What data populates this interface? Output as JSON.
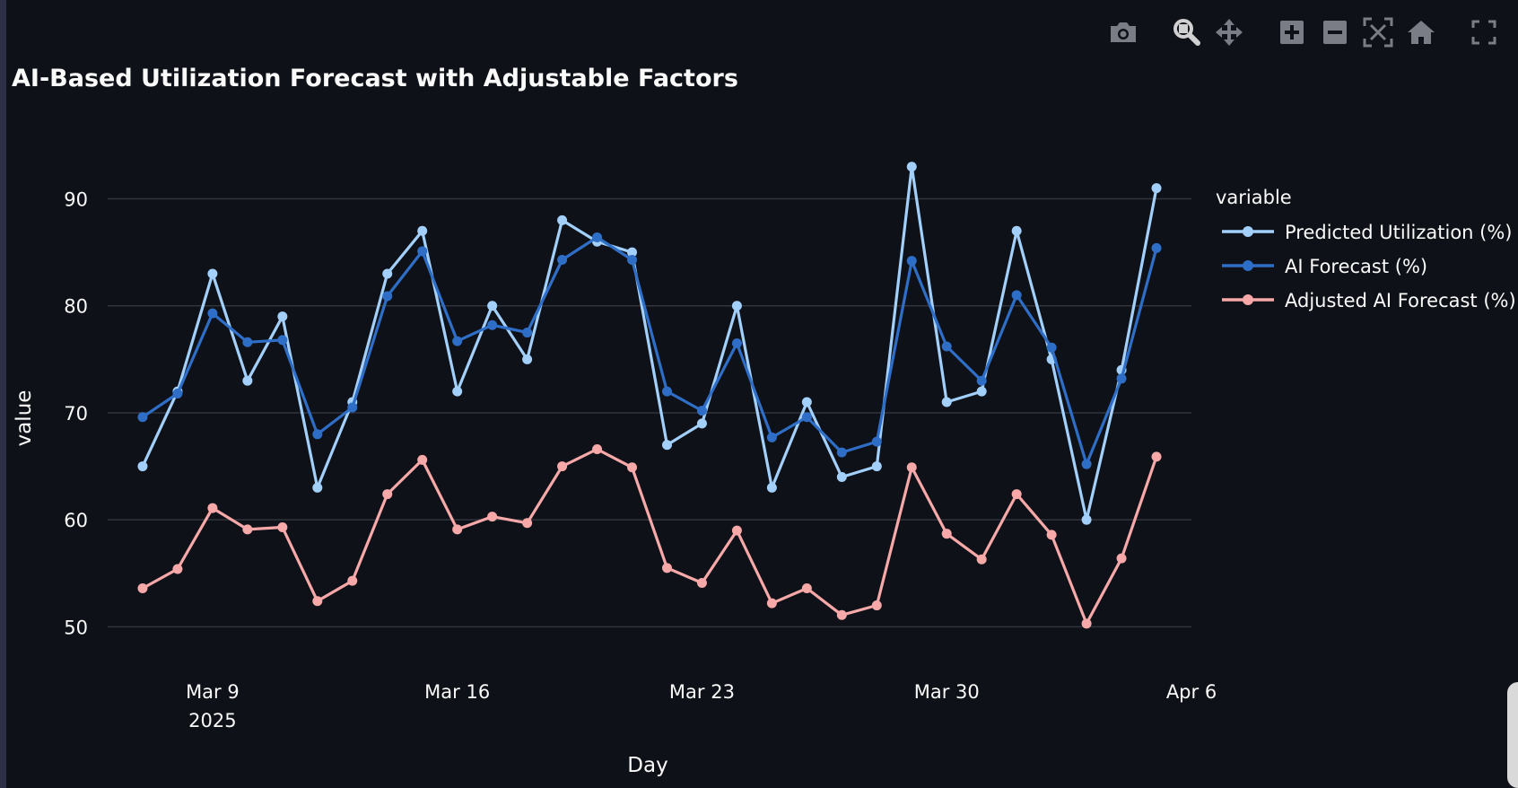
{
  "toolbar": {
    "buttons": [
      {
        "name": "camera-icon",
        "label": "Download plot as a png"
      },
      {
        "name": "zoom-icon",
        "label": "Zoom"
      },
      {
        "name": "pan-icon",
        "label": "Pan"
      },
      {
        "name": "zoom-in-icon",
        "label": "Zoom in"
      },
      {
        "name": "zoom-out-icon",
        "label": "Zoom out"
      },
      {
        "name": "autoscale-icon",
        "label": "Autoscale"
      },
      {
        "name": "home-icon",
        "label": "Reset axes"
      },
      {
        "name": "fullscreen-icon",
        "label": "View fullscreen"
      }
    ],
    "icon_color": "#7a7d85",
    "active_color": "#d0d0d0"
  },
  "chart_data": {
    "type": "line",
    "title": "AI-Based Utilization Forecast with Adjustable Factors",
    "xlabel": "Day",
    "ylabel": "value",
    "legend_title": "variable",
    "legend_position": "right",
    "grid": true,
    "x_range": [
      "2025-03-06",
      "2025-04-06"
    ],
    "ylim": [
      45,
      96
    ],
    "yticks": [
      50,
      60,
      70,
      80,
      90
    ],
    "xticks": [
      {
        "date": "2025-03-09",
        "label": "Mar 9",
        "sublabel": "2025"
      },
      {
        "date": "2025-03-16",
        "label": "Mar 16",
        "sublabel": ""
      },
      {
        "date": "2025-03-23",
        "label": "Mar 23",
        "sublabel": ""
      },
      {
        "date": "2025-03-30",
        "label": "Mar 30",
        "sublabel": ""
      },
      {
        "date": "2025-04-06",
        "label": "Apr 6",
        "sublabel": ""
      }
    ],
    "x": [
      "2025-03-07",
      "2025-03-08",
      "2025-03-09",
      "2025-03-10",
      "2025-03-11",
      "2025-03-12",
      "2025-03-13",
      "2025-03-14",
      "2025-03-15",
      "2025-03-16",
      "2025-03-17",
      "2025-03-18",
      "2025-03-19",
      "2025-03-20",
      "2025-03-21",
      "2025-03-22",
      "2025-03-23",
      "2025-03-24",
      "2025-03-25",
      "2025-03-26",
      "2025-03-27",
      "2025-03-28",
      "2025-03-29",
      "2025-03-30",
      "2025-03-31",
      "2025-04-01",
      "2025-04-02",
      "2025-04-03",
      "2025-04-04",
      "2025-04-05"
    ],
    "series": [
      {
        "name": "Predicted Utilization (%)",
        "color": "#a3d0fb",
        "values": [
          65,
          72,
          83,
          73,
          79,
          63,
          71,
          83,
          87,
          72,
          80,
          75,
          88,
          86,
          85,
          67,
          69,
          80,
          63,
          71,
          64,
          65,
          93,
          71,
          72,
          87,
          75,
          60,
          74,
          91
        ]
      },
      {
        "name": "AI Forecast (%)",
        "color": "#2f6ec6",
        "values": [
          69.6,
          71.8,
          79.3,
          76.6,
          76.8,
          68,
          70.5,
          80.9,
          85.1,
          76.7,
          78.2,
          77.5,
          84.3,
          86.4,
          84.3,
          72,
          70.2,
          76.5,
          67.7,
          69.6,
          66.3,
          67.3,
          84.2,
          76.2,
          73,
          81,
          76.1,
          65.2,
          73.2,
          85.4
        ]
      },
      {
        "name": "Adjusted AI Forecast (%)",
        "color": "#f7a8a8",
        "values": [
          53.6,
          55.4,
          61.1,
          59.1,
          59.3,
          52.4,
          54.3,
          62.4,
          65.6,
          59.1,
          60.3,
          59.7,
          65,
          66.6,
          64.9,
          55.5,
          54.1,
          59,
          52.2,
          53.6,
          51.1,
          52,
          64.9,
          58.7,
          56.3,
          62.4,
          58.6,
          50.3,
          56.4,
          65.9
        ]
      }
    ]
  }
}
